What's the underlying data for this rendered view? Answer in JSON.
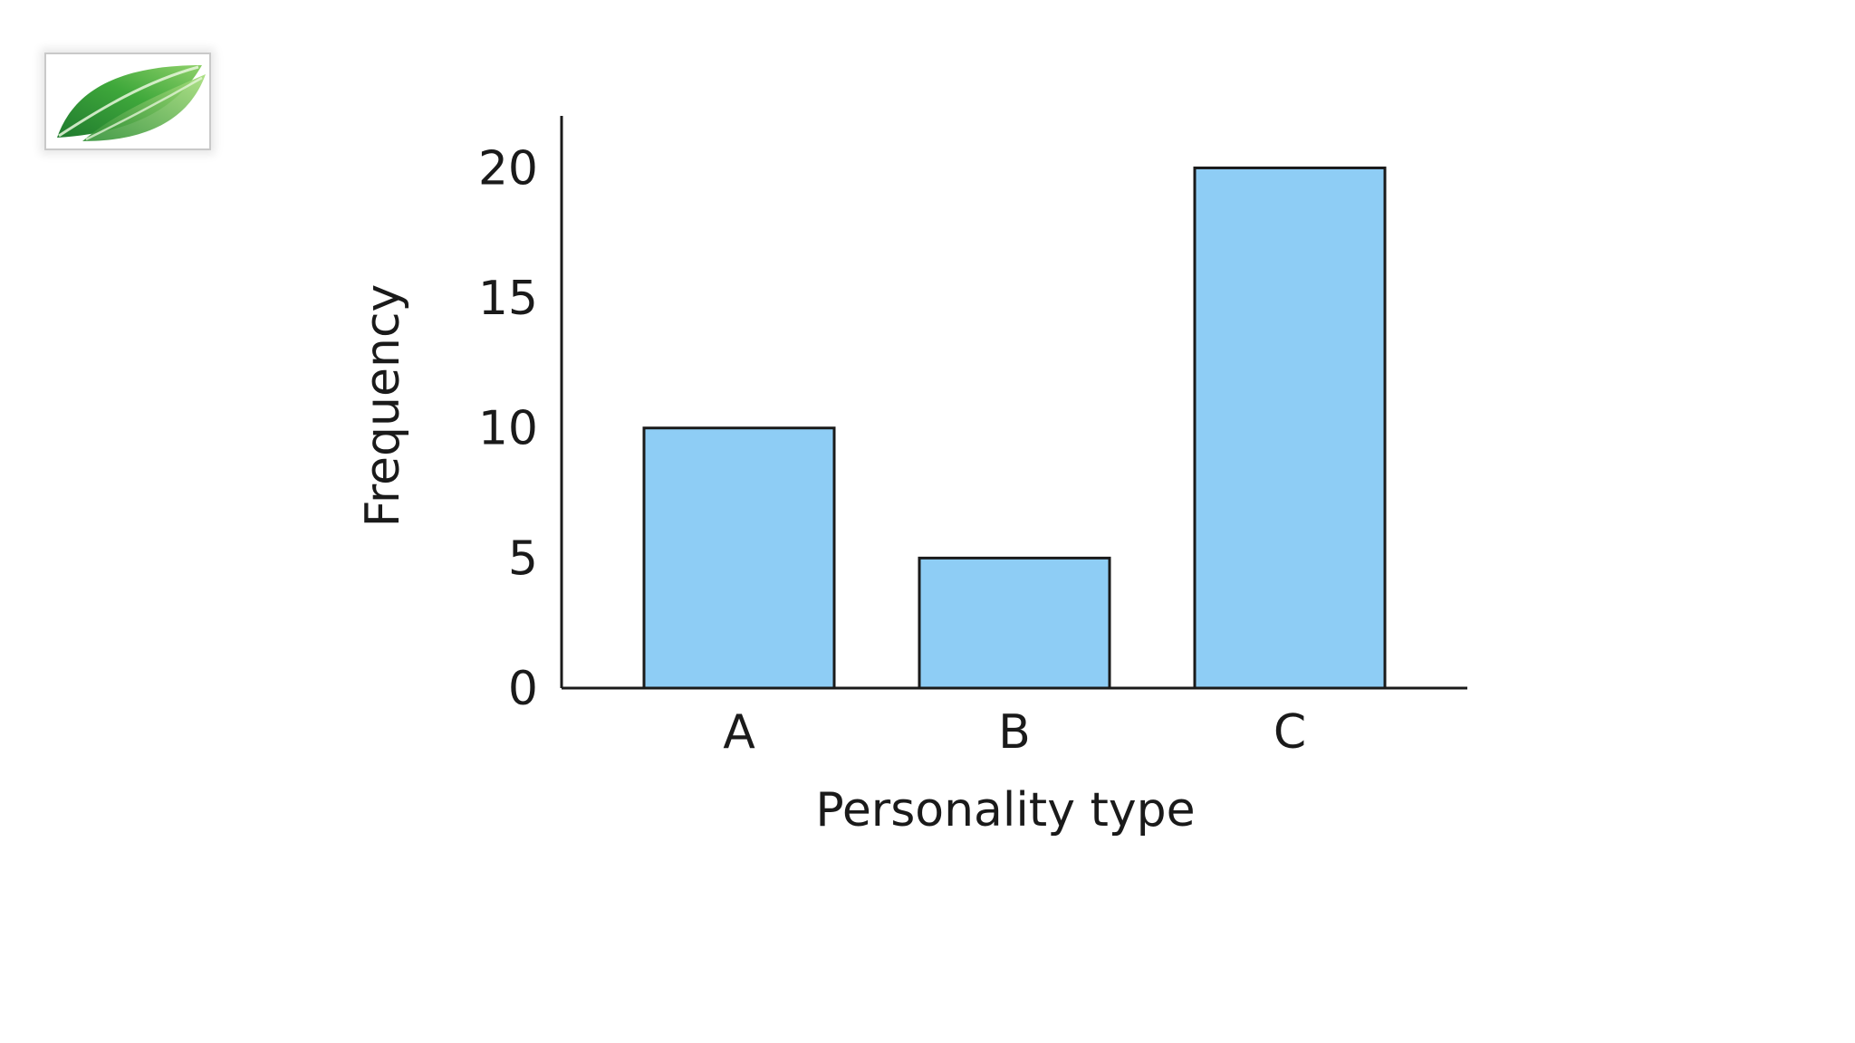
{
  "chart_data": {
    "type": "bar",
    "categories": [
      "A",
      "B",
      "C"
    ],
    "values": [
      10,
      5,
      20
    ],
    "xlabel": "Personality type",
    "ylabel": "Frequency",
    "yticks": [
      "0",
      "5",
      "10",
      "15",
      "20"
    ],
    "ylim": [
      0,
      22
    ],
    "grid": false,
    "bar_color": "#8ecdf5",
    "bar_edge_color": "#1a1a1a"
  },
  "logo": {
    "icon": "green-leaf-icon",
    "colors": [
      "#1f7a2e",
      "#3fa83b",
      "#8fd16a"
    ]
  }
}
